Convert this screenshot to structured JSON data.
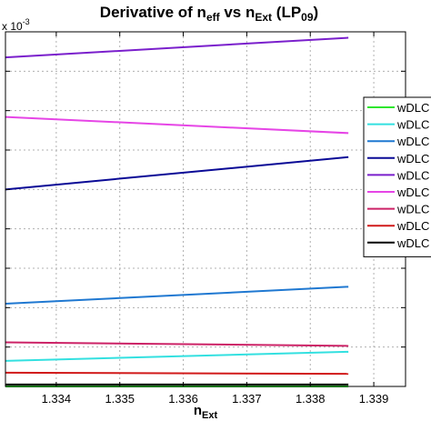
{
  "chart_data": {
    "type": "line",
    "title": {
      "parts": [
        {
          "text": "Derivative of n",
          "sub": false
        },
        {
          "text": "eff",
          "sub": true
        },
        {
          "text": " vs n",
          "sub": false
        },
        {
          "text": "Ext",
          "sub": true
        },
        {
          "text": " (LP",
          "sub": false
        },
        {
          "text": "09",
          "sub": true
        },
        {
          "text": ")",
          "sub": false
        }
      ]
    },
    "xlabel": {
      "parts": [
        {
          "text": "n",
          "sub": false
        },
        {
          "text": "Ext",
          "sub": true
        }
      ]
    },
    "y_exponent": {
      "base": "x 10",
      "exp": "-3"
    },
    "xlim": [
      1.3332,
      1.3395
    ],
    "ylim": [
      0,
      9
    ],
    "x_ticks": [
      1.334,
      1.335,
      1.336,
      1.337,
      1.338,
      1.339
    ],
    "x_tick_labels": [
      "1.334",
      "1.335",
      "1.336",
      "1.337",
      "1.338",
      "1.339"
    ],
    "y_ticks": [
      1,
      2,
      3,
      4,
      5,
      6,
      7,
      8
    ],
    "grid": true,
    "legend_position": "right",
    "series": [
      {
        "name": "wDLC",
        "color": "#2ee62e",
        "x": [
          1.3332,
          1.3386
        ],
        "y": [
          0.0,
          0.0
        ]
      },
      {
        "name": "wDLC",
        "color": "#33e0e0",
        "x": [
          1.3332,
          1.3386
        ],
        "y": [
          0.65,
          0.88
        ]
      },
      {
        "name": "wDLC",
        "color": "#1f78d1",
        "x": [
          1.3332,
          1.3386
        ],
        "y": [
          2.1,
          2.53
        ]
      },
      {
        "name": "wDLC",
        "color": "#0a0a96",
        "x": [
          1.3332,
          1.3386
        ],
        "y": [
          5.0,
          5.82
        ]
      },
      {
        "name": "wDLC",
        "color": "#7a1fcc",
        "x": [
          1.3332,
          1.3386
        ],
        "y": [
          8.35,
          8.85
        ]
      },
      {
        "name": "wDLC",
        "color": "#e645e6",
        "x": [
          1.3332,
          1.3386
        ],
        "y": [
          6.84,
          6.43
        ]
      },
      {
        "name": "wDLC",
        "color": "#cc2266",
        "x": [
          1.3332,
          1.3386
        ],
        "y": [
          1.12,
          1.03
        ]
      },
      {
        "name": "wDLC",
        "color": "#d11a1a",
        "x": [
          1.3332,
          1.3386
        ],
        "y": [
          0.35,
          0.32
        ]
      },
      {
        "name": "wDLC",
        "color": "#000000",
        "x": [
          1.3332,
          1.3386
        ],
        "y": [
          0.05,
          0.05
        ]
      }
    ]
  }
}
